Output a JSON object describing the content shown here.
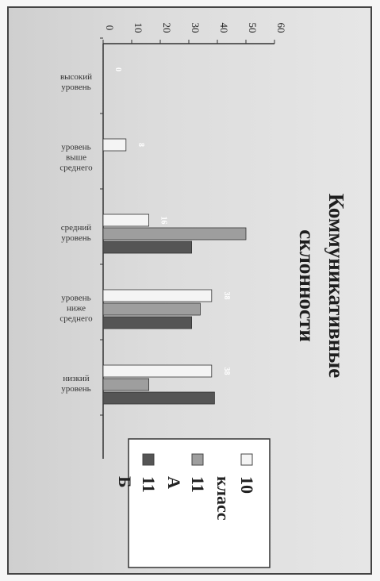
{
  "chart_data": {
    "type": "bar",
    "orientation": "horizontal",
    "title": "Коммуникативные склонности",
    "categories": [
      "высокий уровень",
      "уровень выше среднего",
      "средний уровень",
      "уровень ниже среднего",
      "низкий уровень"
    ],
    "category_lines": [
      [
        "высокий",
        "уровень"
      ],
      [
        "уровень",
        "выше",
        "среднего"
      ],
      [
        "средний",
        "уровень"
      ],
      [
        "уровень",
        "ниже",
        "среднего"
      ],
      [
        "низкий",
        "уровень"
      ]
    ],
    "series": [
      {
        "name": "10 класс",
        "values": [
          0,
          8,
          16,
          38,
          38
        ],
        "color": "#f4f4f4"
      },
      {
        "name": "11 А",
        "values": [
          0,
          0,
          50,
          34,
          16
        ],
        "color": "#9e9e9e"
      },
      {
        "name": "11 Б",
        "values": [
          0,
          0,
          31,
          31,
          39
        ],
        "color": "#555555"
      }
    ],
    "data_labels": [
      {
        "category": 0,
        "series": 0,
        "text": "0"
      },
      {
        "category": 1,
        "series": 0,
        "text": "8"
      },
      {
        "category": 2,
        "series": 0,
        "text": "16"
      },
      {
        "category": 3,
        "series": 0,
        "text": "38"
      },
      {
        "category": 4,
        "series": 0,
        "text": "38"
      }
    ],
    "ticks": [
      "0",
      "10",
      "20",
      "30",
      "40",
      "50",
      "60"
    ],
    "xlim": [
      0,
      60
    ],
    "legend_position": "bottom",
    "grid": false
  }
}
